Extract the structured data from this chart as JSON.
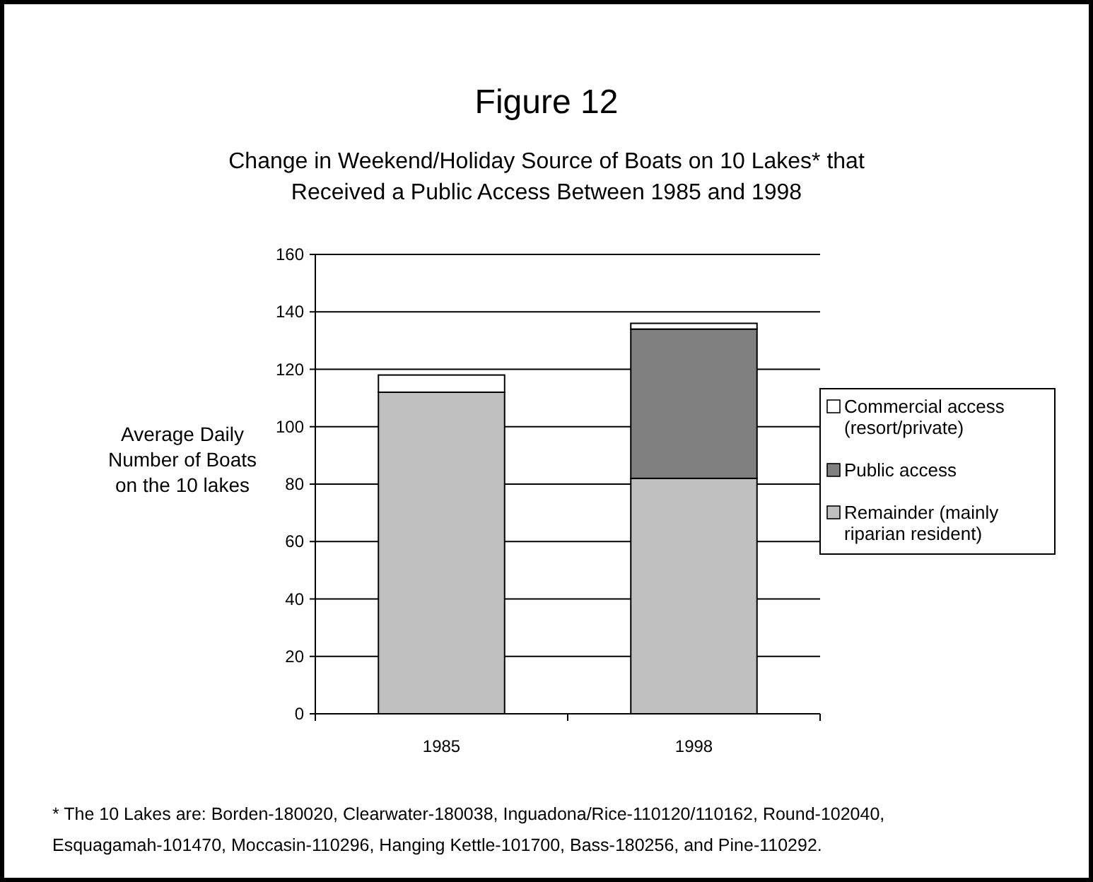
{
  "chart_data": {
    "type": "bar",
    "title": "Figure 12",
    "subtitle": "Change in Weekend/Holiday Source of Boats on 10 Lakes* that\nReceived a Public Access Between 1985 and 1998",
    "ylabel": "Average Daily\nNumber of Boats\non the 10 lakes",
    "categories": [
      "1985",
      "1998"
    ],
    "stacked": true,
    "series": [
      {
        "name": "Remainder (mainly\nriparian resident)",
        "color": "#c0c0c0",
        "values": [
          112,
          82
        ]
      },
      {
        "name": "Public access",
        "color": "#808080",
        "values": [
          0,
          52
        ]
      },
      {
        "name": "Commercial access\n(resort/private)",
        "color": "#ffffff",
        "values": [
          6,
          2
        ]
      }
    ],
    "ylim": [
      0,
      160
    ],
    "yticks": [
      0,
      20,
      40,
      60,
      80,
      100,
      120,
      140,
      160
    ],
    "grid": "y",
    "legend": "right",
    "annotations": [
      "* The 10 Lakes are: Borden-180020, Clearwater-180038, Inguadona/Rice-110120/110162, Round-102040,\nEsquagamah-101470, Moccasin-110296, Hanging Kettle-101700, Bass-180256, and Pine-110292."
    ]
  }
}
